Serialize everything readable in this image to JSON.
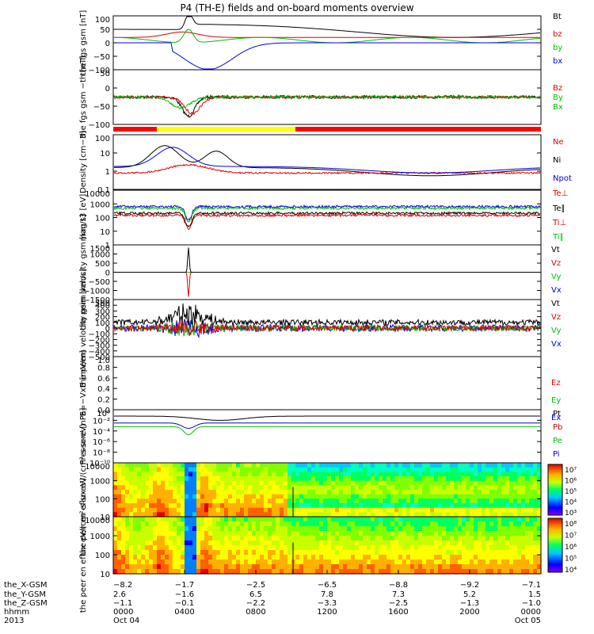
{
  "title": "P4 (TH-E) fields and on-board moments overview",
  "chart_data": [
    {
      "type": "line",
      "ylabel": "the fgs gsm [nT]",
      "ylim": [
        -100,
        100
      ],
      "yticks": [
        "100",
        "50",
        "0",
        "−50",
        "−100"
      ],
      "legend": [
        {
          "name": "Bt",
          "color": "#000000"
        },
        {
          "name": "bz",
          "color": "#e00000"
        },
        {
          "name": "by",
          "color": "#00c000"
        },
        {
          "name": "bx",
          "color": "#0000e0"
        }
      ]
    },
    {
      "type": "line",
      "ylabel": "the fgs gsm −th [nT]",
      "ylim": [
        -120,
        50
      ],
      "yticks": [
        "50",
        "0",
        "−50",
        "−100"
      ],
      "legend": [
        {
          "name": "Bz",
          "color": "#e00000"
        },
        {
          "name": "By",
          "color": "#00c000"
        },
        {
          "name": "Bx",
          "color": "#00c000"
        }
      ]
    },
    {
      "type": "line",
      "ylabel": "Density [cm−3]",
      "ylim": [
        0.1,
        100
      ],
      "log": true,
      "yticks": [
        "100",
        "10",
        "1",
        "0.1"
      ],
      "legend": [
        {
          "name": "Ne",
          "color": "#e00000"
        },
        {
          "name": "Ni",
          "color": "#000000"
        },
        {
          "name": "Npot",
          "color": "#0000e0"
        }
      ]
    },
    {
      "type": "line",
      "ylabel": "mag t3 [eV]",
      "ylim": [
        1,
        10000
      ],
      "log": true,
      "yticks": [
        "10000",
        "1000",
        "100",
        "10",
        "1"
      ],
      "legend": [
        {
          "name": "Te⊥",
          "color": "#e00000"
        },
        {
          "name": "Te∥",
          "color": "#000000"
        },
        {
          "name": "Ti⊥",
          "color": "#e00000"
        },
        {
          "name": "Ti∥",
          "color": "#00c000"
        }
      ]
    },
    {
      "type": "line",
      "ylabel": "the peim velocity gsm [km/s]",
      "ylim": [
        -1500,
        1500
      ],
      "yticks": [
        "1500",
        "1000",
        "500",
        "0",
        "−500",
        "−1000",
        "−1500"
      ],
      "legend": [
        {
          "name": "Vt",
          "color": "#000000"
        },
        {
          "name": "Vz",
          "color": "#e00000"
        },
        {
          "name": "Vy",
          "color": "#00c000"
        },
        {
          "name": "Vx",
          "color": "#0000e0"
        }
      ]
    },
    {
      "type": "line",
      "ylabel": "the peem velocity gsm [km/s]",
      "ylim": [
        -500,
        500
      ],
      "yticks": [
        "500",
        "400",
        "300",
        "200",
        "100",
        "0",
        "−100",
        "−200",
        "−300",
        "−400",
        "−500"
      ],
      "legend": [
        {
          "name": "Vt",
          "color": "#000000"
        },
        {
          "name": "Vz",
          "color": "#e00000"
        },
        {
          "name": "Vy",
          "color": "#00c000"
        },
        {
          "name": "Vx",
          "color": "#0000e0"
        }
      ]
    },
    {
      "type": "line",
      "ylabel": "E=−VxB [mV/m]",
      "ylim": [
        0,
        1
      ],
      "yticks": [
        "1.0",
        "0.8",
        "0.6",
        "0.4",
        "0.2",
        "0.0"
      ],
      "legend": [
        {
          "name": "Ez",
          "color": "#e00000"
        },
        {
          "name": "Ey",
          "color": "#00c000"
        },
        {
          "name": "Ex",
          "color": "#0000e0"
        }
      ]
    },
    {
      "type": "line",
      "ylabel": "Pressure [nPa]",
      "log": true,
      "yticks": [
        "10⁰",
        "10⁻²",
        "10⁻⁴",
        "10⁻⁶",
        "10⁻⁸",
        "10⁻¹⁰"
      ],
      "legend": [
        {
          "name": "Pt",
          "color": "#000000"
        },
        {
          "name": "Pb",
          "color": "#e00000"
        },
        {
          "name": "Pe",
          "color": "#00c000"
        },
        {
          "name": "Pi",
          "color": "#0000e0"
        }
      ]
    },
    {
      "type": "heatmap",
      "ylabel": "the peir en eflux eV/(cm²-s-sr-eV)",
      "log": true,
      "yticks": [
        "10000",
        "1000",
        "100",
        "10"
      ],
      "colorbar_ticks": [
        "10⁷",
        "10⁶",
        "10⁵",
        "10⁴",
        "10³"
      ]
    },
    {
      "type": "heatmap",
      "ylabel": "the peer en eflux eV/(cm²-s-sr-eV)",
      "log": true,
      "yticks": [
        "10000",
        "1000",
        "100",
        "10"
      ],
      "colorbar_ticks": [
        "10⁸",
        "10⁷",
        "10⁶",
        "10⁵",
        "10⁴"
      ]
    }
  ],
  "xaxis": {
    "row_labels": [
      "the_X-GSM",
      "the_Y-GSM",
      "the_Z-GSM",
      "hhmm",
      "2013"
    ],
    "columns": [
      {
        "vals": [
          "−8.2",
          "2.6",
          "−1.1",
          "0000",
          "Oct 04"
        ]
      },
      {
        "vals": [
          "−1.7",
          "−1.6",
          "−0.1",
          "0400",
          ""
        ]
      },
      {
        "vals": [
          "−2.5",
          "6.5",
          "−2.2",
          "0800",
          ""
        ]
      },
      {
        "vals": [
          "−6.5",
          "7.8",
          "−3.3",
          "1200",
          ""
        ]
      },
      {
        "vals": [
          "−8.8",
          "7.3",
          "−2.5",
          "1600",
          ""
        ]
      },
      {
        "vals": [
          "−9.2",
          "5.2",
          "−1.3",
          "2000",
          ""
        ]
      },
      {
        "vals": [
          "−7.1",
          "1.5",
          "−1.0",
          "0000",
          "Oct 05"
        ]
      }
    ]
  }
}
